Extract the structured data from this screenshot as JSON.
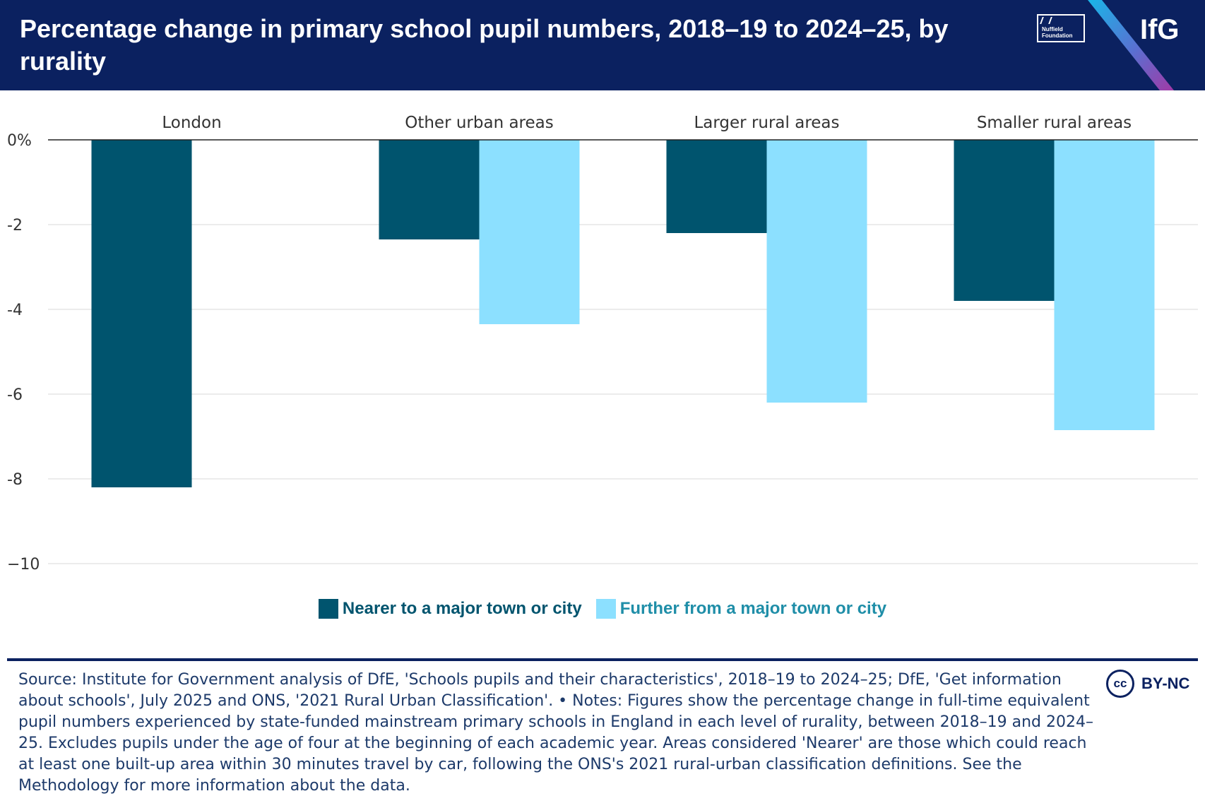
{
  "header": {
    "title": "Percentage change in primary school pupil numbers, 2018–19 to 2024–25, by rurality",
    "partner_logo_text": "Nuffield\nFoundation",
    "brand": "IfG"
  },
  "colors": {
    "header_bg": "#0b2160",
    "nearer": "#00546e",
    "further": "#8ce0ff",
    "nearer_text": "#00546e",
    "further_text": "#1f8ea8",
    "gridline": "#e6e6e6",
    "axis": "#222222"
  },
  "chart_data": {
    "type": "bar",
    "title": "Percentage change in primary school pupil numbers, 2018–19 to 2024–25, by rurality",
    "categories": [
      "London",
      "Other urban areas",
      "Larger rural areas",
      "Smaller rural areas"
    ],
    "series": [
      {
        "name": "Nearer to a major town or city",
        "values": [
          -8.2,
          -2.35,
          -2.2,
          -3.8
        ]
      },
      {
        "name": "Further from a major town or city",
        "values": [
          null,
          -4.35,
          -6.2,
          -6.85
        ]
      }
    ],
    "y_ticks": [
      0,
      -2,
      -4,
      -6,
      -8,
      -10
    ],
    "y_tick_labels": [
      "0%",
      "-2",
      "-4",
      "-6",
      "-8",
      "−10"
    ],
    "ylim": [
      -10,
      0
    ],
    "xlabel": "",
    "ylabel": "",
    "grid": true,
    "legend_position": "bottom"
  },
  "legend": {
    "nearer_label": "Nearer to a major town or city",
    "further_label": "Further from a major town or city"
  },
  "footer": {
    "text": "Source: Institute for Government analysis of DfE, 'Schools pupils and their characteristics', 2018–19 to 2024–25; DfE, 'Get information about schools', July 2025 and ONS, '2021 Rural Urban Classification'. • Notes: Figures show the percentage change in full-time equivalent pupil numbers experienced by state-funded mainstream primary schools in England in each level of rurality, between 2018–19 and 2024–25. Excludes pupils under the age of four at the beginning of each academic year.  Areas considered 'Nearer' are those which could reach at least one built-up area within 30 minutes travel by car, following the ONS's 2021 rural-urban classification definitions. See the Methodology for more information about the data.",
    "license_cc": "cc",
    "license_label": "BY-NC"
  }
}
